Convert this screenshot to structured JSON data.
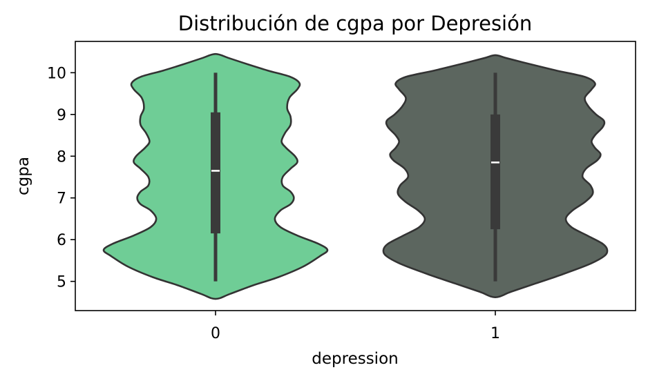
{
  "chart_data": {
    "type": "violin",
    "title": "Distribución de cgpa por Depresión",
    "xlabel": "depression",
    "ylabel": "cgpa",
    "categories": [
      "0",
      "1"
    ],
    "ylim": [
      4.3,
      10.75
    ],
    "yticks": [
      5,
      6,
      7,
      8,
      9,
      10
    ],
    "grid": false,
    "colors": {
      "0": "#6fcd96",
      "1": "#5c665f",
      "outline": "#333333",
      "box": "#3a3a3a",
      "median": "#ffffff"
    },
    "series": [
      {
        "category": "0",
        "min": 5.0,
        "q1": 6.15,
        "median": 7.65,
        "q3": 9.05,
        "max": 10.0,
        "density_profile": [
          [
            4.58,
            0.0
          ],
          [
            4.7,
            0.13
          ],
          [
            4.9,
            0.33
          ],
          [
            5.1,
            0.56
          ],
          [
            5.35,
            0.78
          ],
          [
            5.6,
            0.93
          ],
          [
            5.75,
            1.0
          ],
          [
            5.9,
            0.92
          ],
          [
            6.1,
            0.73
          ],
          [
            6.3,
            0.58
          ],
          [
            6.5,
            0.53
          ],
          [
            6.7,
            0.58
          ],
          [
            6.85,
            0.67
          ],
          [
            7.0,
            0.7
          ],
          [
            7.15,
            0.67
          ],
          [
            7.3,
            0.6
          ],
          [
            7.5,
            0.6
          ],
          [
            7.7,
            0.67
          ],
          [
            7.85,
            0.73
          ],
          [
            8.0,
            0.71
          ],
          [
            8.2,
            0.63
          ],
          [
            8.35,
            0.59
          ],
          [
            8.55,
            0.62
          ],
          [
            8.75,
            0.67
          ],
          [
            8.95,
            0.67
          ],
          [
            9.15,
            0.64
          ],
          [
            9.4,
            0.66
          ],
          [
            9.6,
            0.73
          ],
          [
            9.75,
            0.75
          ],
          [
            9.9,
            0.67
          ],
          [
            10.05,
            0.47
          ],
          [
            10.2,
            0.29
          ],
          [
            10.35,
            0.12
          ],
          [
            10.45,
            0.0
          ]
        ]
      },
      {
        "category": "1",
        "min": 5.0,
        "q1": 6.25,
        "median": 7.85,
        "q3": 9.0,
        "max": 10.0,
        "density_profile": [
          [
            4.62,
            0.0
          ],
          [
            4.75,
            0.14
          ],
          [
            4.95,
            0.36
          ],
          [
            5.15,
            0.58
          ],
          [
            5.4,
            0.83
          ],
          [
            5.6,
            0.97
          ],
          [
            5.75,
            1.0
          ],
          [
            5.9,
            0.96
          ],
          [
            6.1,
            0.82
          ],
          [
            6.3,
            0.68
          ],
          [
            6.5,
            0.63
          ],
          [
            6.7,
            0.69
          ],
          [
            6.9,
            0.8
          ],
          [
            7.1,
            0.87
          ],
          [
            7.3,
            0.85
          ],
          [
            7.5,
            0.78
          ],
          [
            7.7,
            0.81
          ],
          [
            7.9,
            0.91
          ],
          [
            8.05,
            0.94
          ],
          [
            8.2,
            0.89
          ],
          [
            8.35,
            0.86
          ],
          [
            8.5,
            0.89
          ],
          [
            8.7,
            0.96
          ],
          [
            8.85,
            0.97
          ],
          [
            9.0,
            0.9
          ],
          [
            9.2,
            0.83
          ],
          [
            9.4,
            0.8
          ],
          [
            9.6,
            0.86
          ],
          [
            9.75,
            0.89
          ],
          [
            9.9,
            0.8
          ],
          [
            10.05,
            0.55
          ],
          [
            10.2,
            0.32
          ],
          [
            10.35,
            0.1
          ],
          [
            10.42,
            0.0
          ]
        ]
      }
    ]
  }
}
